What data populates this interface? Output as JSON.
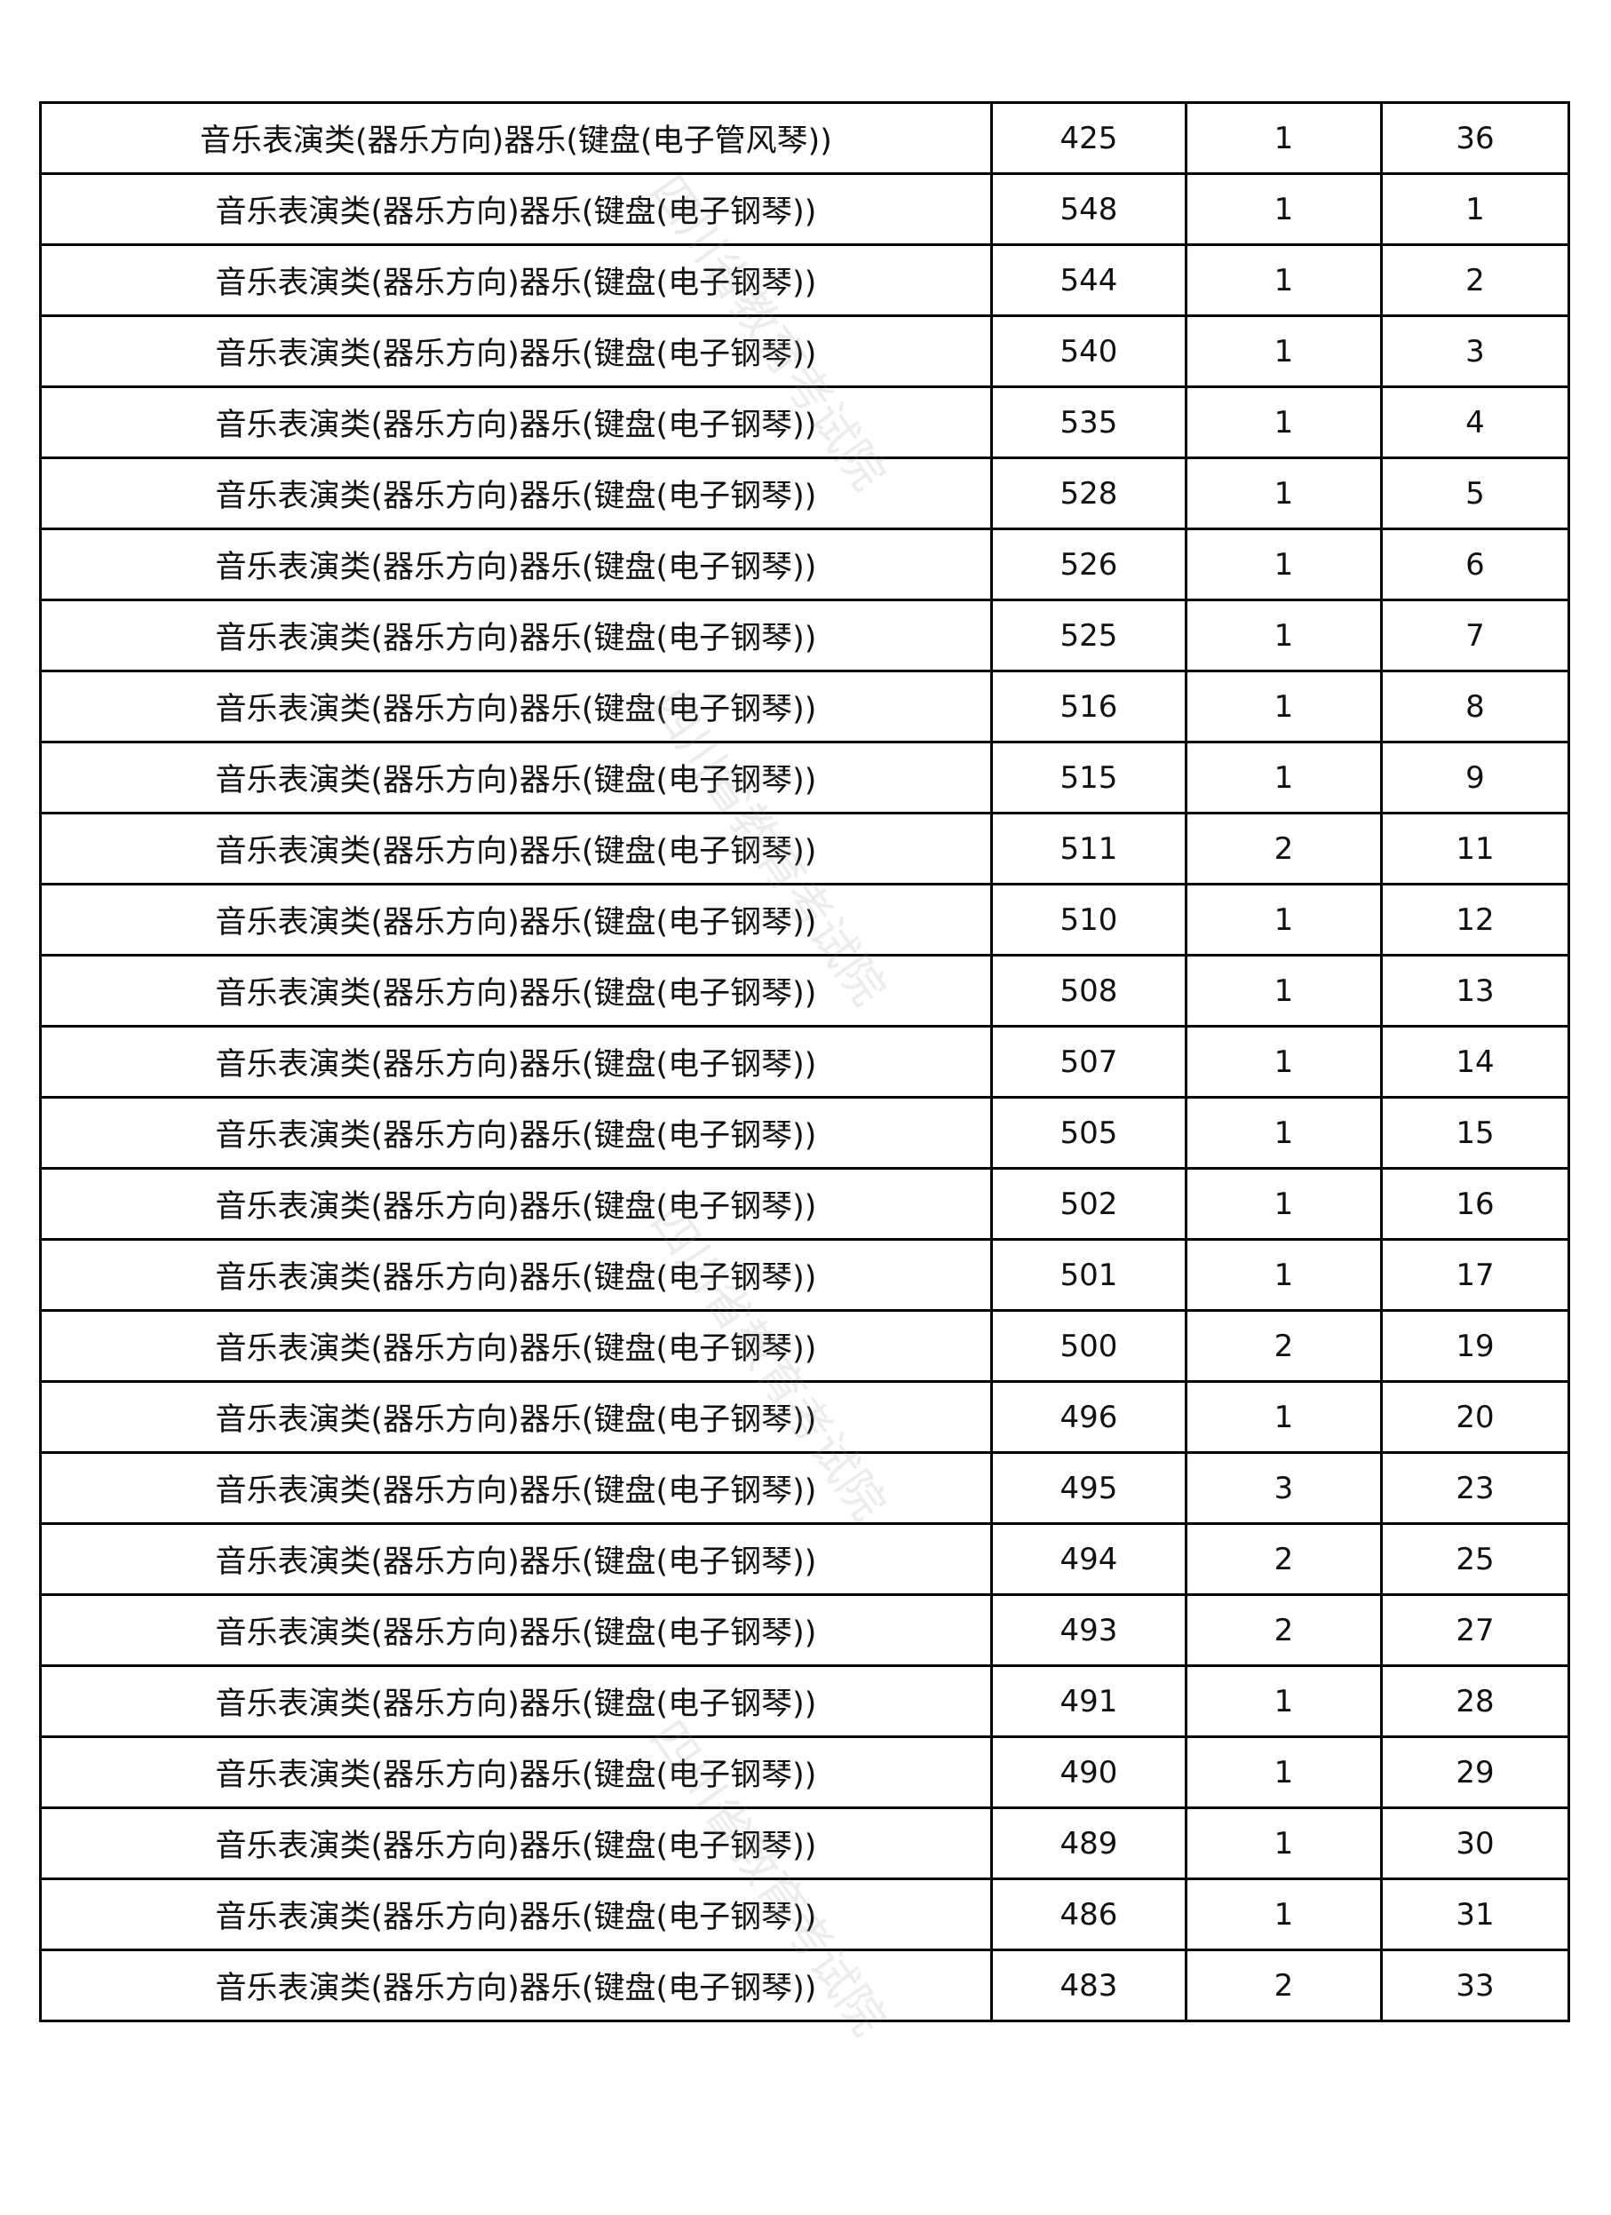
{
  "watermark": "四川省教育考试院",
  "table": {
    "rows": [
      [
        "音乐表演类(器乐方向)器乐(键盘(电子管风琴))",
        "425",
        "1",
        "36"
      ],
      [
        "音乐表演类(器乐方向)器乐(键盘(电子钢琴))",
        "548",
        "1",
        "1"
      ],
      [
        "音乐表演类(器乐方向)器乐(键盘(电子钢琴))",
        "544",
        "1",
        "2"
      ],
      [
        "音乐表演类(器乐方向)器乐(键盘(电子钢琴))",
        "540",
        "1",
        "3"
      ],
      [
        "音乐表演类(器乐方向)器乐(键盘(电子钢琴))",
        "535",
        "1",
        "4"
      ],
      [
        "音乐表演类(器乐方向)器乐(键盘(电子钢琴))",
        "528",
        "1",
        "5"
      ],
      [
        "音乐表演类(器乐方向)器乐(键盘(电子钢琴))",
        "526",
        "1",
        "6"
      ],
      [
        "音乐表演类(器乐方向)器乐(键盘(电子钢琴))",
        "525",
        "1",
        "7"
      ],
      [
        "音乐表演类(器乐方向)器乐(键盘(电子钢琴))",
        "516",
        "1",
        "8"
      ],
      [
        "音乐表演类(器乐方向)器乐(键盘(电子钢琴))",
        "515",
        "1",
        "9"
      ],
      [
        "音乐表演类(器乐方向)器乐(键盘(电子钢琴))",
        "511",
        "2",
        "11"
      ],
      [
        "音乐表演类(器乐方向)器乐(键盘(电子钢琴))",
        "510",
        "1",
        "12"
      ],
      [
        "音乐表演类(器乐方向)器乐(键盘(电子钢琴))",
        "508",
        "1",
        "13"
      ],
      [
        "音乐表演类(器乐方向)器乐(键盘(电子钢琴))",
        "507",
        "1",
        "14"
      ],
      [
        "音乐表演类(器乐方向)器乐(键盘(电子钢琴))",
        "505",
        "1",
        "15"
      ],
      [
        "音乐表演类(器乐方向)器乐(键盘(电子钢琴))",
        "502",
        "1",
        "16"
      ],
      [
        "音乐表演类(器乐方向)器乐(键盘(电子钢琴))",
        "501",
        "1",
        "17"
      ],
      [
        "音乐表演类(器乐方向)器乐(键盘(电子钢琴))",
        "500",
        "2",
        "19"
      ],
      [
        "音乐表演类(器乐方向)器乐(键盘(电子钢琴))",
        "496",
        "1",
        "20"
      ],
      [
        "音乐表演类(器乐方向)器乐(键盘(电子钢琴))",
        "495",
        "3",
        "23"
      ],
      [
        "音乐表演类(器乐方向)器乐(键盘(电子钢琴))",
        "494",
        "2",
        "25"
      ],
      [
        "音乐表演类(器乐方向)器乐(键盘(电子钢琴))",
        "493",
        "2",
        "27"
      ],
      [
        "音乐表演类(器乐方向)器乐(键盘(电子钢琴))",
        "491",
        "1",
        "28"
      ],
      [
        "音乐表演类(器乐方向)器乐(键盘(电子钢琴))",
        "490",
        "1",
        "29"
      ],
      [
        "音乐表演类(器乐方向)器乐(键盘(电子钢琴))",
        "489",
        "1",
        "30"
      ],
      [
        "音乐表演类(器乐方向)器乐(键盘(电子钢琴))",
        "486",
        "1",
        "31"
      ],
      [
        "音乐表演类(器乐方向)器乐(键盘(电子钢琴))",
        "483",
        "2",
        "33"
      ]
    ]
  }
}
